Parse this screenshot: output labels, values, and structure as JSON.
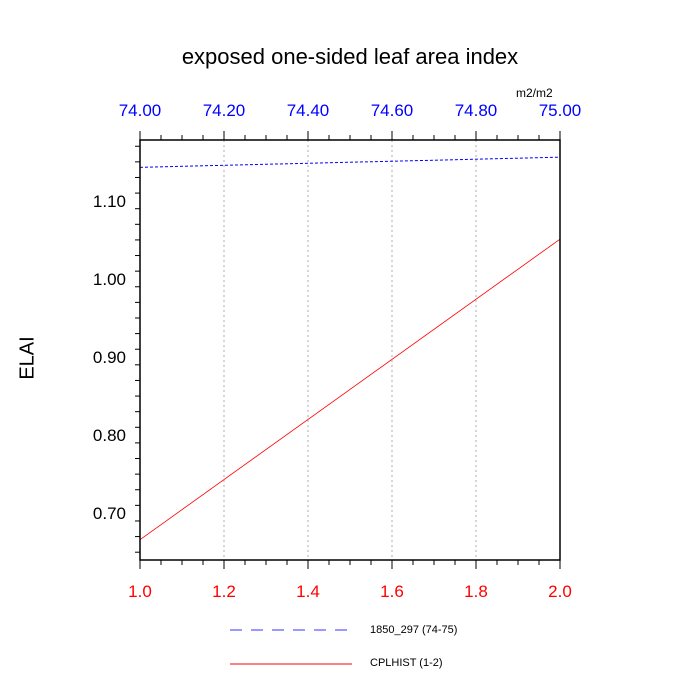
{
  "chart_data": {
    "type": "line",
    "title": "exposed one-sided leaf area index",
    "ylabel": "ELAI",
    "top_axis_units": "m2/m2",
    "ylim": [
      0.64,
      1.178
    ],
    "grid": "vertical dotted",
    "bottom_axis": {
      "range": [
        1.0,
        2.0
      ],
      "tick_labels": [
        "1.0",
        "1.2",
        "1.4",
        "1.6",
        "1.8",
        "2.0"
      ],
      "tick_values": [
        1.0,
        1.2,
        1.4,
        1.6,
        1.8,
        2.0
      ],
      "color": "#ff0000"
    },
    "top_axis": {
      "range": [
        74.0,
        75.0
      ],
      "tick_labels": [
        "74.00",
        "74.20",
        "74.40",
        "74.60",
        "74.80",
        "75.00"
      ],
      "tick_values": [
        74.0,
        74.2,
        74.4,
        74.6,
        74.8,
        75.0
      ],
      "color": "#0000ff"
    },
    "y_ticks": {
      "tick_labels": [
        "0.70",
        "0.80",
        "0.90",
        "1.00",
        "1.10"
      ],
      "tick_values": [
        0.7,
        0.8,
        0.9,
        1.0,
        1.1
      ]
    },
    "series": [
      {
        "name": "1850_297 (74-75)",
        "axis": "top",
        "x": [
          74.0,
          75.0
        ],
        "values": [
          1.143,
          1.156
        ],
        "color": "#0000ff",
        "style": "dashed"
      },
      {
        "name": "CPLHIST (1-2)",
        "axis": "bottom",
        "x": [
          1.0,
          2.0
        ],
        "values": [
          0.666,
          1.051
        ],
        "color": "#ff0000",
        "style": "solid"
      }
    ],
    "legend_position": "bottom-center"
  }
}
